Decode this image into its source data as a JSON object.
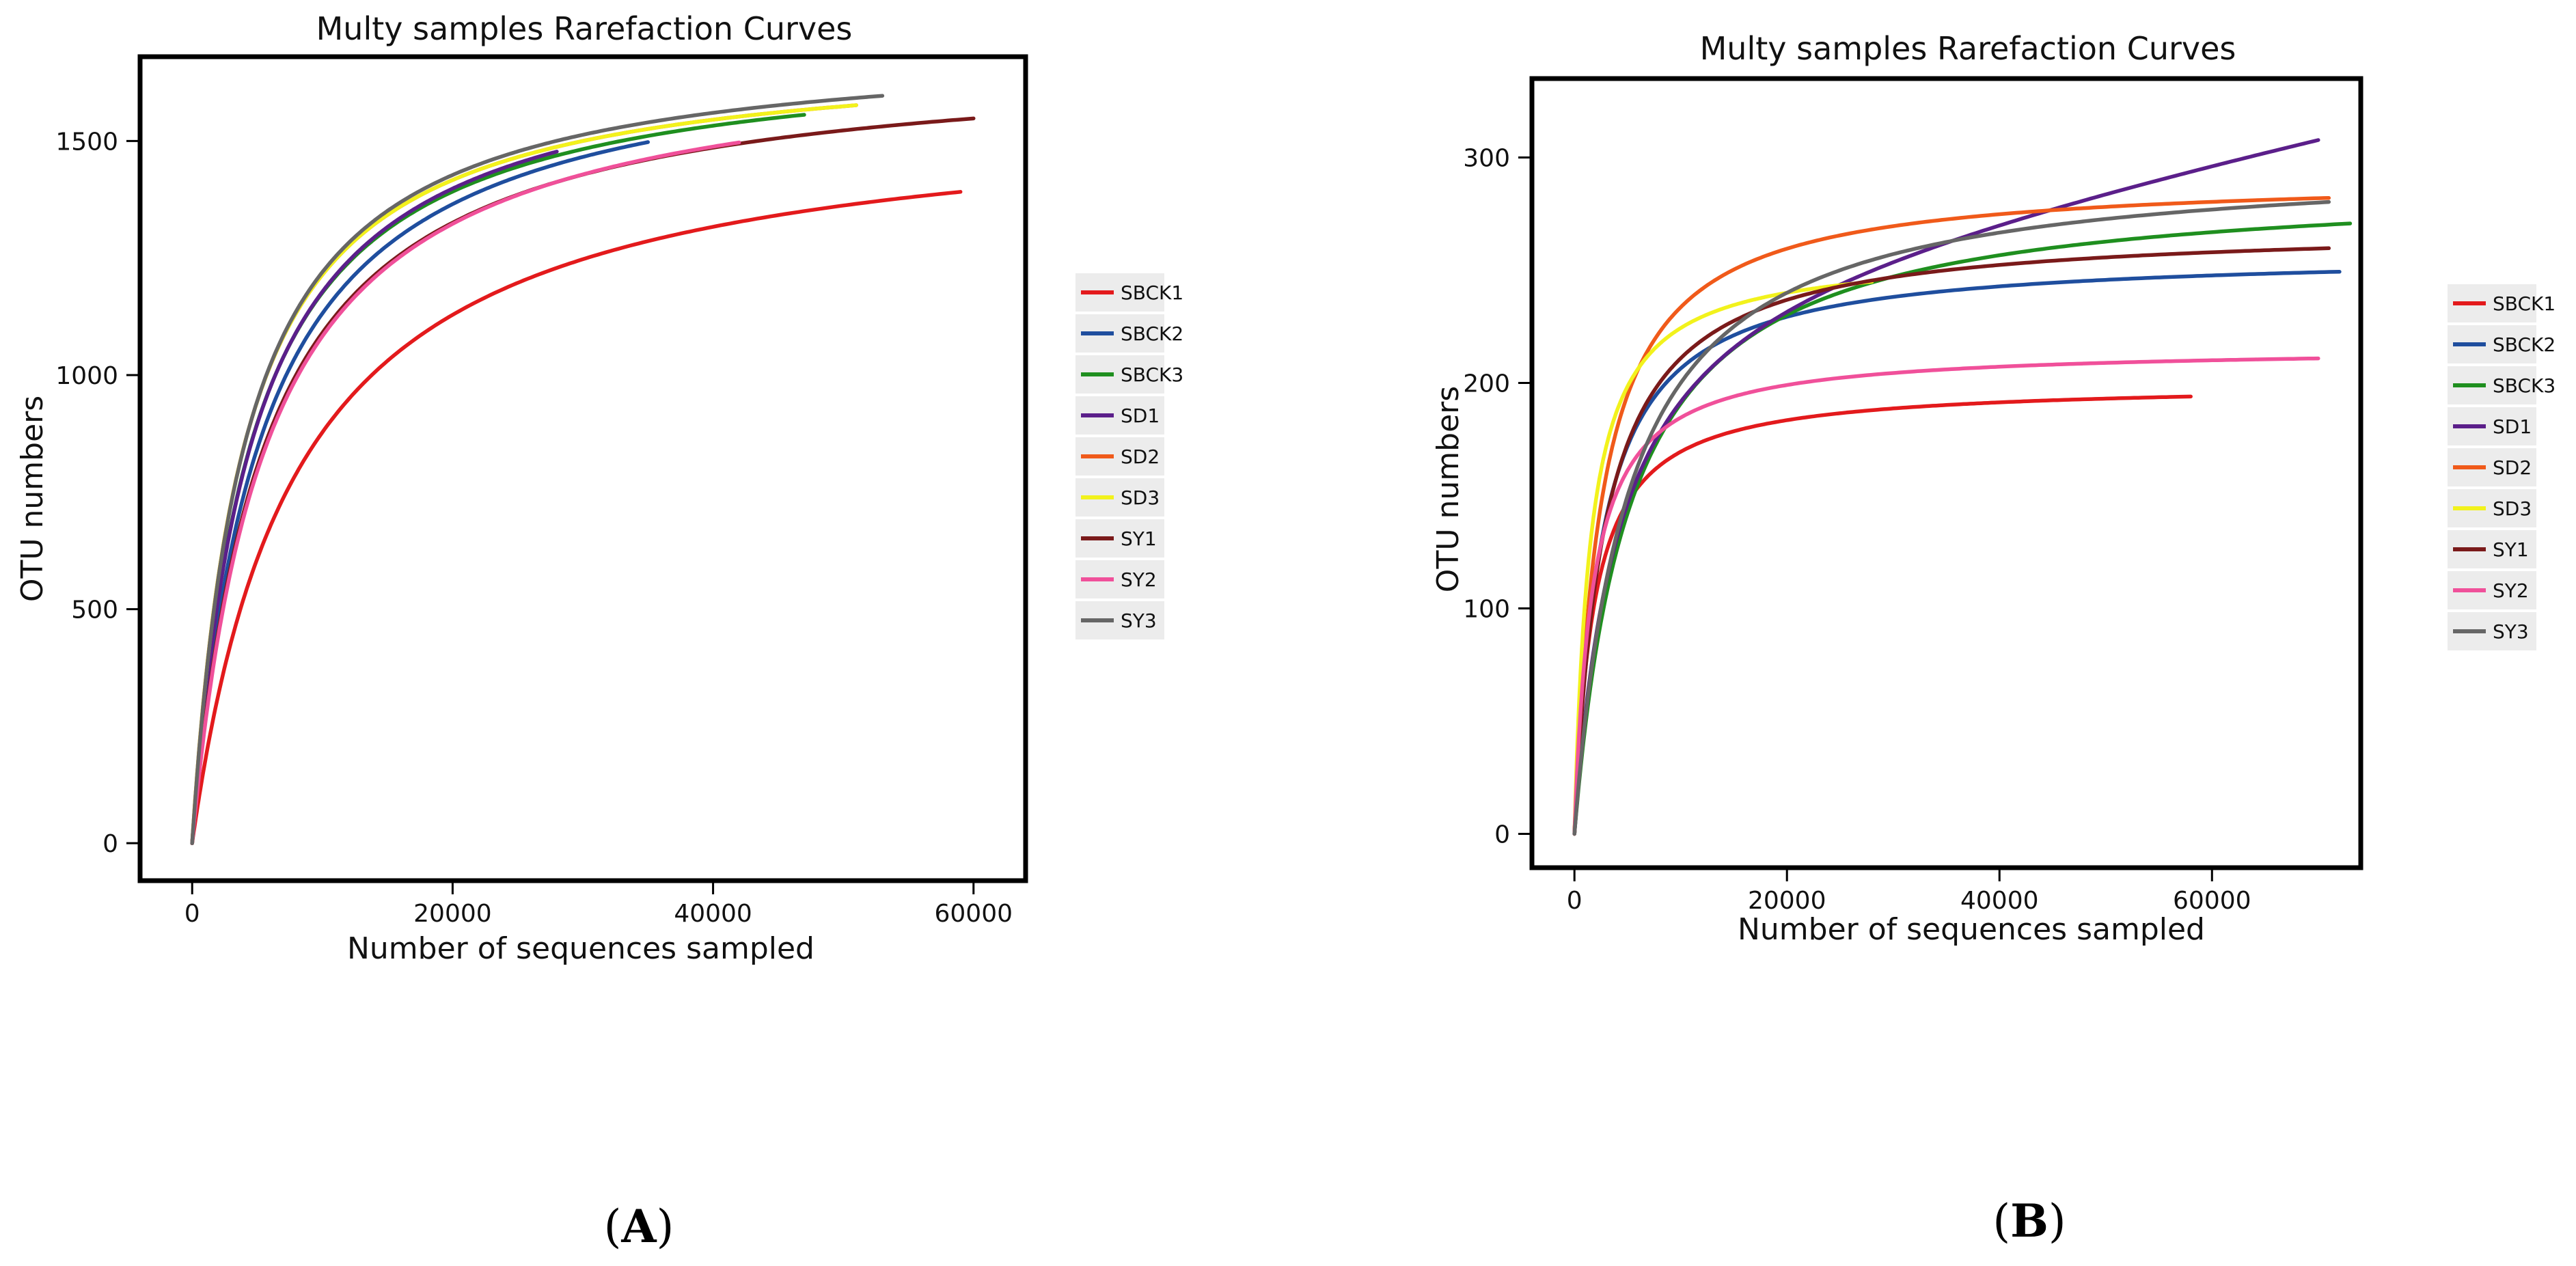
{
  "chart_data": [
    {
      "type": "line",
      "panel_label": "A",
      "title": "Multy samples Rarefaction Curves",
      "xlabel": "Number of sequences sampled",
      "ylabel": "OTU numbers",
      "xlim": [
        -4000,
        64000
      ],
      "ylim": [
        -80,
        1680
      ],
      "xticks": [
        0,
        20000,
        40000,
        60000
      ],
      "xtick_labels": [
        "0",
        "20000",
        "40000",
        "60000"
      ],
      "yticks": [
        0,
        500,
        1000,
        1500
      ],
      "ytick_labels": [
        "0",
        "500",
        "1000",
        "1500"
      ],
      "legend_position": "right",
      "series": [
        {
          "name": "SBCK1",
          "color": "#e31a1c",
          "a": 1580,
          "b": 8000,
          "xmax": 59000
        },
        {
          "name": "SBCK2",
          "color": "#1f4e9e",
          "a": 1720,
          "b": 5200,
          "xmax": 35000
        },
        {
          "name": "SBCK3",
          "color": "#1f8f1f",
          "a": 1705,
          "b": 4500,
          "xmax": 47000
        },
        {
          "name": "SD1",
          "color": "#5b1f8a",
          "a": 1720,
          "b": 4600,
          "xmax": 28000
        },
        {
          "name": "SD2",
          "color": "#f05a1a",
          "a": 1700,
          "b": 4000,
          "xmax": 51000
        },
        {
          "name": "SD3",
          "color": "#f2f21c",
          "a": 1700,
          "b": 4000,
          "xmax": 51000
        },
        {
          "name": "SY1",
          "color": "#7a1a1a",
          "a": 1690,
          "b": 5500,
          "xmax": 60000
        },
        {
          "name": "SY2",
          "color": "#f0509a",
          "a": 1700,
          "b": 5700,
          "xmax": 42000
        },
        {
          "name": "SY3",
          "color": "#666666",
          "a": 1720,
          "b": 4100,
          "xmax": 53000
        }
      ]
    },
    {
      "type": "line",
      "panel_label": "B",
      "title": "Multy samples Rarefaction Curves",
      "xlabel": "Number of sequences sampled",
      "ylabel": "OTU numbers",
      "xlim": [
        -4000,
        74000
      ],
      "ylim": [
        -15,
        335
      ],
      "xticks": [
        0,
        20000,
        40000,
        60000
      ],
      "xtick_labels": [
        "0",
        "20000",
        "40000",
        "60000"
      ],
      "yticks": [
        0,
        100,
        200,
        300
      ],
      "ytick_labels": [
        "0",
        "100",
        "200",
        "300"
      ],
      "legend_position": "right",
      "series": [
        {
          "name": "SBCK1",
          "color": "#e31a1c",
          "a": 200,
          "b": 1800,
          "xmax": 58000,
          "slope": 0.0
        },
        {
          "name": "SBCK2",
          "color": "#1f4e9e",
          "a": 258,
          "b": 2500,
          "xmax": 72000,
          "slope": 0.0
        },
        {
          "name": "SBCK3",
          "color": "#1f8f1f",
          "a": 290,
          "b": 5200,
          "xmax": 73000,
          "slope": 0.0
        },
        {
          "name": "SD1",
          "color": "#5b1f8a",
          "a": 255,
          "b": 4000,
          "xmax": 70000,
          "slope": 0.00095
        },
        {
          "name": "SD2",
          "color": "#f05a1a",
          "a": 292,
          "b": 2500,
          "xmax": 71000,
          "slope": 0.0
        },
        {
          "name": "SD3",
          "color": "#f2f21c",
          "a": 258,
          "b": 1500,
          "xmax": 28000,
          "slope": 0.0
        },
        {
          "name": "SY1",
          "color": "#7a1a1a",
          "a": 270,
          "b": 2800,
          "xmax": 71000,
          "slope": 0.0
        },
        {
          "name": "SY2",
          "color": "#f0509a",
          "a": 216,
          "b": 1700,
          "xmax": 70000,
          "slope": 0.0
        },
        {
          "name": "SY3",
          "color": "#666666",
          "a": 300,
          "b": 5000,
          "xmax": 71000,
          "slope": 0.0
        }
      ]
    }
  ]
}
